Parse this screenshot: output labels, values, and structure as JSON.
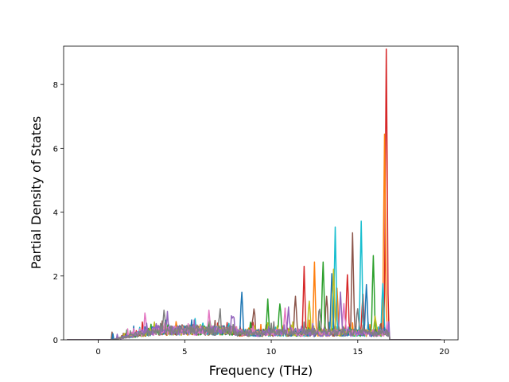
{
  "chart_data": {
    "type": "line",
    "title": "",
    "xlabel": "Frequency (THz)",
    "ylabel": "Partial Density of States",
    "xlim": [
      -2.0,
      20.8
    ],
    "ylim": [
      0,
      9.2
    ],
    "xticks": [
      0,
      5,
      10,
      15,
      20
    ],
    "yticks": [
      0,
      2,
      4,
      6,
      8
    ],
    "grid": false,
    "legend": "none",
    "colors": [
      "#1f77b4",
      "#ff7f0e",
      "#2ca02c",
      "#d62728",
      "#9467bd",
      "#8c564b",
      "#e377c2",
      "#7f7f7f",
      "#bcbd22",
      "#17becf"
    ],
    "series": [
      {
        "color": "#d62728",
        "peaks": [
          [
            11.9,
            2.0
          ],
          [
            14.4,
            1.9
          ],
          [
            15.3,
            1.2
          ],
          [
            16.65,
            8.75
          ]
        ]
      },
      {
        "color": "#ff7f0e",
        "peaks": [
          [
            12.5,
            2.05
          ],
          [
            13.8,
            1.3
          ],
          [
            16.55,
            6.3
          ]
        ]
      },
      {
        "color": "#17becf",
        "peaks": [
          [
            13.7,
            3.3
          ],
          [
            15.2,
            3.4
          ],
          [
            16.45,
            1.6
          ]
        ]
      },
      {
        "color": "#8c564b",
        "peaks": [
          [
            9.0,
            0.85
          ],
          [
            11.4,
            1.25
          ],
          [
            13.2,
            1.2
          ],
          [
            14.7,
            3.1
          ]
        ]
      },
      {
        "color": "#2ca02c",
        "peaks": [
          [
            9.8,
            1.0
          ],
          [
            10.5,
            1.0
          ],
          [
            13.0,
            2.3
          ],
          [
            15.9,
            2.45
          ]
        ]
      },
      {
        "color": "#1f77b4",
        "peaks": [
          [
            8.3,
            1.3
          ],
          [
            13.5,
            1.8
          ],
          [
            15.5,
            1.6
          ]
        ]
      },
      {
        "color": "#bcbd22",
        "peaks": [
          [
            12.2,
            1.1
          ],
          [
            13.6,
            2.1
          ],
          [
            16.0,
            0.6
          ]
        ]
      },
      {
        "color": "#e377c2",
        "peaks": [
          [
            2.7,
            0.6
          ],
          [
            6.4,
            0.5
          ],
          [
            10.8,
            0.8
          ],
          [
            14.2,
            0.9
          ]
        ]
      },
      {
        "color": "#9467bd",
        "peaks": [
          [
            4.0,
            0.55
          ],
          [
            7.8,
            0.45
          ],
          [
            11.0,
            0.7
          ],
          [
            14.0,
            1.2
          ]
        ]
      },
      {
        "color": "#7f7f7f",
        "peaks": [
          [
            3.8,
            0.6
          ],
          [
            7.0,
            0.45
          ],
          [
            12.8,
            0.7
          ],
          [
            15.0,
            0.8
          ]
        ]
      }
    ]
  }
}
